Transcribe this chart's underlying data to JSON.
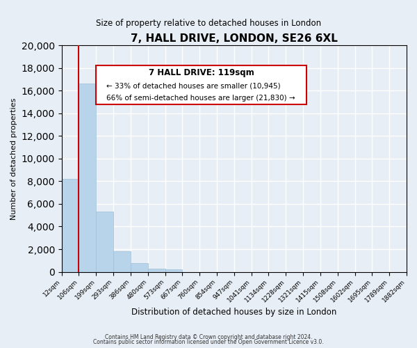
{
  "title": "7, HALL DRIVE, LONDON, SE26 6XL",
  "subtitle": "Size of property relative to detached houses in London",
  "xlabel": "Distribution of detached houses by size in London",
  "ylabel": "Number of detached properties",
  "tick_labels": [
    "12sqm",
    "106sqm",
    "199sqm",
    "293sqm",
    "386sqm",
    "480sqm",
    "573sqm",
    "667sqm",
    "760sqm",
    "854sqm",
    "947sqm",
    "1041sqm",
    "1134sqm",
    "1228sqm",
    "1321sqm",
    "1415sqm",
    "1508sqm",
    "1602sqm",
    "1695sqm",
    "1789sqm",
    "1882sqm"
  ],
  "bar_heights": [
    8200,
    16600,
    5300,
    1800,
    750,
    300,
    200,
    0,
    0,
    0,
    0,
    0,
    0,
    0,
    0,
    0,
    0,
    0,
    0,
    0
  ],
  "bar_color": "#b8d4ea",
  "bar_edge_color": "#9fbfd8",
  "vline_color": "#cc0000",
  "annotation_title": "7 HALL DRIVE: 119sqm",
  "annotation_line1": "← 33% of detached houses are smaller (10,945)",
  "annotation_line2": "66% of semi-detached houses are larger (21,830) →",
  "annotation_box_color": "#ffffff",
  "annotation_box_edge": "#cc0000",
  "ylim": [
    0,
    20000
  ],
  "yticks": [
    0,
    2000,
    4000,
    6000,
    8000,
    10000,
    12000,
    14000,
    16000,
    18000,
    20000
  ],
  "footer1": "Contains HM Land Registry data © Crown copyright and database right 2024.",
  "footer2": "Contains public sector information licensed under the Open Government Licence v3.0.",
  "background_color": "#e8eef5",
  "plot_bg_color": "#e8eef5"
}
